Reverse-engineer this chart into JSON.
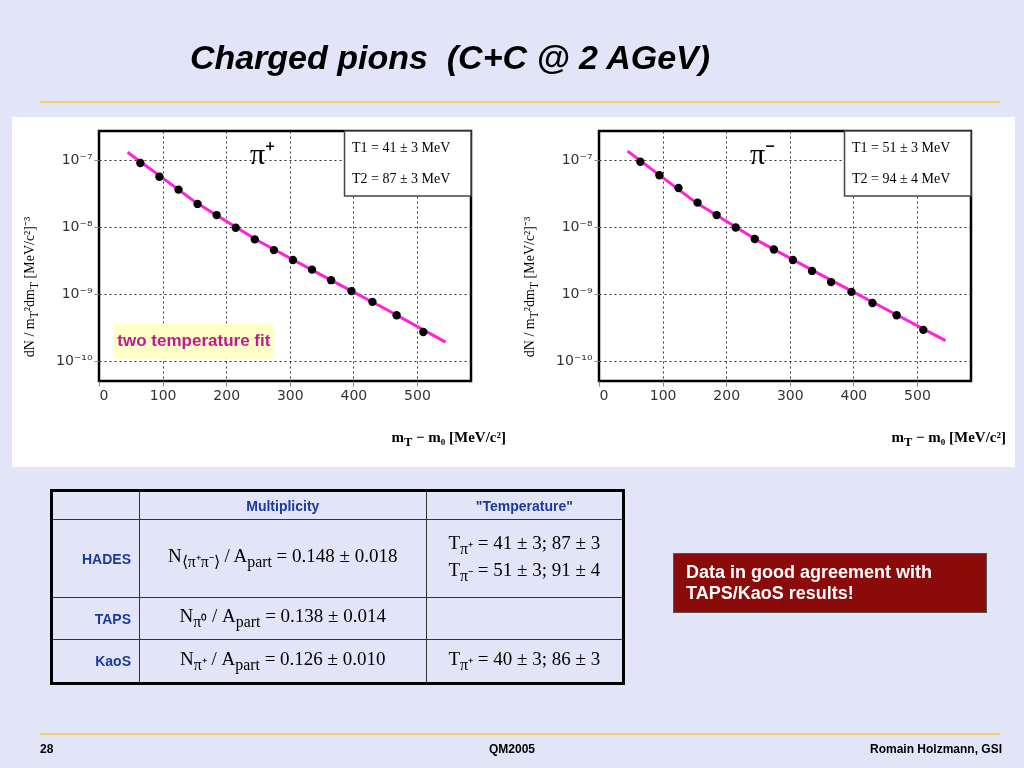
{
  "chart_data": [
    {
      "type": "other",
      "title": "Charged pions  (C+C @ 2 AGeV)"
    },
    {
      "type": "scatter",
      "title": "π⁺",
      "xlabel": "m$_{T}$ − m₀   [MeV/c²]",
      "ylabel": "dN / m$_{T}$²dm$_{T}$   [MeV/c²]⁻³",
      "log": true,
      "grid": true,
      "xlim": [
        0,
        585
      ],
      "xticks": [
        0,
        100,
        200,
        300,
        400,
        500
      ],
      "ylim": [
        5e-11,
        2.7e-07
      ],
      "yticks": [
        {
          "value": 1e-10,
          "label": "10⁻¹⁰"
        },
        {
          "value": 1e-09,
          "label": "10⁻⁹"
        },
        {
          "value": 1e-08,
          "label": "10⁻⁸"
        },
        {
          "value": 1e-07,
          "label": "10⁻⁷"
        }
      ],
      "annotations": [
        "T1 = 41 ± 3 MeV",
        "T2 = 87 ± 3 MeV",
        "two temperature fit"
      ],
      "series": [
        {
          "type": "scatter",
          "color": "#000000",
          "marker": "circle",
          "x": [
            65,
            95,
            125,
            155,
            185,
            215,
            245,
            275,
            305,
            335,
            365,
            397,
            430,
            468,
            510
          ],
          "values": [
            9e-08,
            5.6e-08,
            3.6e-08,
            2.2e-08,
            1.5e-08,
            9.7e-09,
            6.5e-09,
            4.5e-09,
            3.2e-09,
            2.3e-09,
            1.6e-09,
            1.1e-09,
            7.6e-10,
            4.8e-10,
            2.7e-10
          ]
        },
        {
          "type": "line",
          "color": "#ff22dd",
          "x": [
            45,
            150,
            250,
            350,
            450,
            545
          ],
          "values": [
            1.3e-07,
            2.4e-08,
            6.2e-09,
            1.9e-09,
            6e-10,
            1.9e-10
          ]
        }
      ]
    },
    {
      "type": "scatter",
      "title": "π⁻",
      "xlabel": "m$_{T}$ − m₀   [MeV/c²]",
      "ylabel": "dN / m$_{T}$²dm$_{T}$   [MeV/c²]⁻³",
      "log": true,
      "grid": true,
      "xlim": [
        0,
        585
      ],
      "xticks": [
        0,
        100,
        200,
        300,
        400,
        500
      ],
      "ylim": [
        5e-11,
        2.7e-07
      ],
      "yticks": [
        {
          "value": 1e-10,
          "label": "10⁻¹⁰"
        },
        {
          "value": 1e-09,
          "label": "10⁻⁹"
        },
        {
          "value": 1e-08,
          "label": "10⁻⁸"
        },
        {
          "value": 1e-07,
          "label": "10⁻⁷"
        }
      ],
      "annotations": [
        "T1 = 51 ± 3 MeV",
        "T2 = 94 ± 4 MeV"
      ],
      "series": [
        {
          "type": "scatter",
          "color": "#000000",
          "marker": "circle",
          "x": [
            65,
            95,
            125,
            155,
            185,
            215,
            245,
            275,
            305,
            335,
            365,
            397,
            430,
            468,
            510
          ],
          "values": [
            9.4e-08,
            5.9e-08,
            3.8e-08,
            2.3e-08,
            1.5e-08,
            9.8e-09,
            6.6e-09,
            4.6e-09,
            3.2e-09,
            2.2e-09,
            1.5e-09,
            1.07e-09,
            7.3e-10,
            4.8e-10,
            2.9e-10
          ]
        },
        {
          "type": "line",
          "color": "#ff22dd",
          "x": [
            45,
            150,
            250,
            350,
            450,
            545
          ],
          "values": [
            1.35e-07,
            2.4e-08,
            6.2e-09,
            1.9e-09,
            6e-10,
            2e-10
          ]
        }
      ]
    },
    {
      "type": "other",
      "annotations": [
        "Multiplicity",
        "\"Temperature\"",
        "HADES",
        "N$_{⟨π⁺π⁻⟩}$ / A$_{part}$ = 0.148 ± 0.018",
        "T$_{π⁺}$ = 41 ± 3;  87 ± 3",
        "T$_{π⁻}$ = 51 ± 3;  91 ± 4",
        "TAPS",
        "N$_{π⁰}$ / A$_{part}$ = 0.138 ± 0.014",
        "KaoS",
        "N$_{π⁺}$ / A$_{part}$ = 0.126 ± 0.010",
        "T$_{π⁺}$ = 40 ± 3;  86 ± 3",
        "Data in good agreement with TAPS/KaoS results!",
        "28",
        "QM2005",
        "Romain Holzmann, GSI"
      ]
    }
  ]
}
